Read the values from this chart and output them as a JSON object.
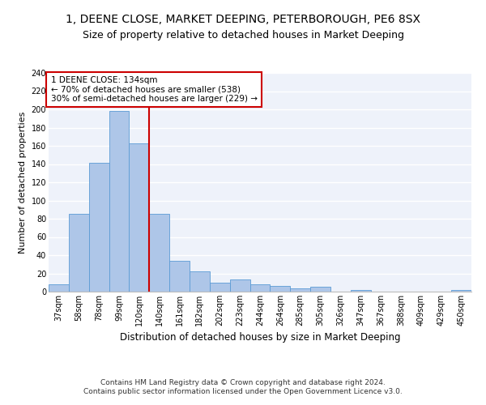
{
  "title1": "1, DEENE CLOSE, MARKET DEEPING, PETERBOROUGH, PE6 8SX",
  "title2": "Size of property relative to detached houses in Market Deeping",
  "xlabel": "Distribution of detached houses by size in Market Deeping",
  "ylabel": "Number of detached properties",
  "categories": [
    "37sqm",
    "58sqm",
    "78sqm",
    "99sqm",
    "120sqm",
    "140sqm",
    "161sqm",
    "182sqm",
    "202sqm",
    "223sqm",
    "244sqm",
    "264sqm",
    "285sqm",
    "305sqm",
    "326sqm",
    "347sqm",
    "367sqm",
    "388sqm",
    "409sqm",
    "429sqm",
    "450sqm"
  ],
  "values": [
    8,
    85,
    141,
    198,
    163,
    85,
    34,
    22,
    10,
    13,
    8,
    6,
    4,
    5,
    0,
    2,
    0,
    0,
    0,
    0,
    2
  ],
  "bar_color": "#aec6e8",
  "bar_edge_color": "#5b9bd5",
  "vline_x": 4.5,
  "vline_color": "#cc0000",
  "annotation_line1": "1 DEENE CLOSE: 134sqm",
  "annotation_line2": "← 70% of detached houses are smaller (538)",
  "annotation_line3": "30% of semi-detached houses are larger (229) →",
  "annotation_box_color": "#ffffff",
  "annotation_box_edge_color": "#cc0000",
  "ylim": [
    0,
    240
  ],
  "yticks": [
    0,
    20,
    40,
    60,
    80,
    100,
    120,
    140,
    160,
    180,
    200,
    220,
    240
  ],
  "footnote": "Contains HM Land Registry data © Crown copyright and database right 2024.\nContains public sector information licensed under the Open Government Licence v3.0.",
  "background_color": "#eef2fa",
  "grid_color": "#ffffff",
  "title1_fontsize": 10,
  "title2_fontsize": 9,
  "xlabel_fontsize": 8.5,
  "ylabel_fontsize": 8,
  "tick_fontsize": 7,
  "annotation_fontsize": 7.5,
  "footnote_fontsize": 6.5
}
